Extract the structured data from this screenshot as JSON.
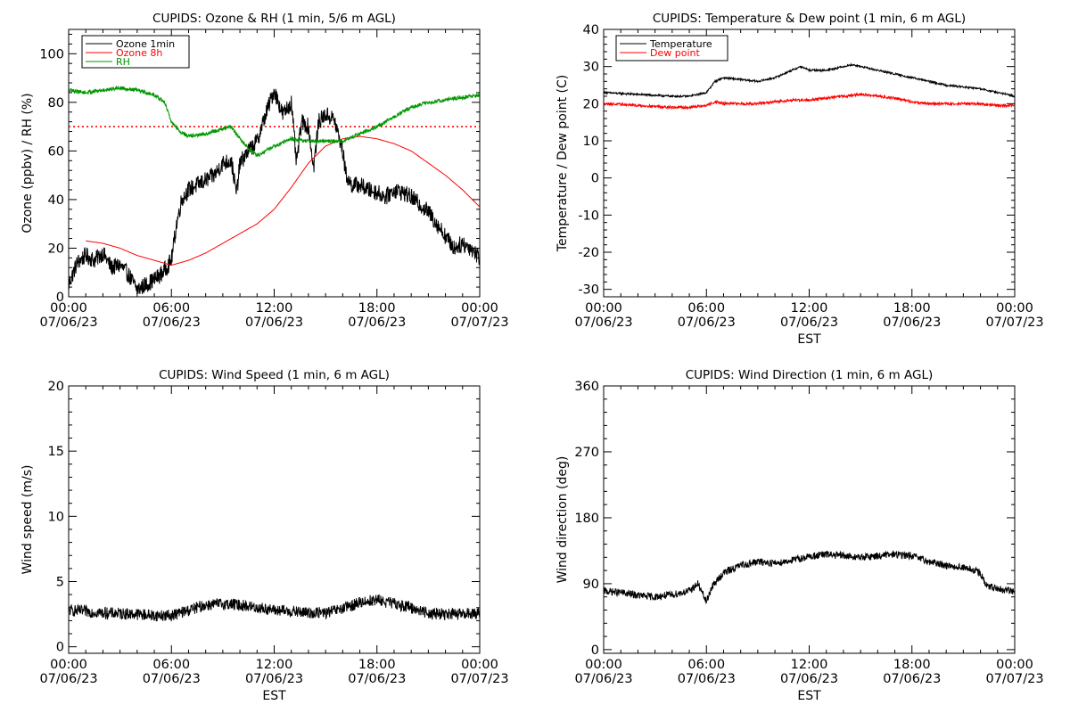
{
  "chart_data": [
    {
      "type": "line",
      "title": "CUPIDS: Ozone & RH (1 min, 5/6 m AGL)",
      "ylabel": "Ozone (ppbv) / RH (%)",
      "xlabel": "",
      "ylim": [
        0,
        110
      ],
      "yticks": [
        "0",
        "20",
        "40",
        "60",
        "80",
        "100"
      ],
      "yticks_values": [
        0,
        20,
        40,
        60,
        80,
        100
      ],
      "xlim": [
        0,
        24
      ],
      "xticks": [
        [
          "00:00",
          "07/06/23"
        ],
        [
          "06:00",
          "07/06/23"
        ],
        [
          "12:00",
          "07/06/23"
        ],
        [
          "18:00",
          "07/06/23"
        ],
        [
          "00:00",
          "07/07/23"
        ]
      ],
      "xticks_values": [
        0,
        6,
        12,
        18,
        24
      ],
      "legend_position": "top-left",
      "reference_line": {
        "y": 70,
        "color": "#ff0000",
        "style": "dotted"
      },
      "series": [
        {
          "name": "Ozone 1min",
          "color": "#000000",
          "noise": 3.5,
          "points": [
            [
              0,
              5
            ],
            [
              0.5,
              14
            ],
            [
              1,
              17
            ],
            [
              1.5,
              15
            ],
            [
              2,
              18
            ],
            [
              2.5,
              12
            ],
            [
              3,
              13
            ],
            [
              3.5,
              9
            ],
            [
              4,
              3
            ],
            [
              4.5,
              5
            ],
            [
              5,
              7
            ],
            [
              5.5,
              10
            ],
            [
              6,
              15
            ],
            [
              6.3,
              30
            ],
            [
              6.6,
              40
            ],
            [
              7,
              44
            ],
            [
              7.5,
              46
            ],
            [
              8,
              48
            ],
            [
              8.5,
              50
            ],
            [
              9,
              55
            ],
            [
              9.5,
              56
            ],
            [
              9.8,
              42
            ],
            [
              10,
              55
            ],
            [
              10.5,
              60
            ],
            [
              11,
              64
            ],
            [
              11.5,
              75
            ],
            [
              12,
              85
            ],
            [
              12.5,
              75
            ],
            [
              13,
              80
            ],
            [
              13.3,
              55
            ],
            [
              13.6,
              72
            ],
            [
              14,
              70
            ],
            [
              14.3,
              53
            ],
            [
              14.6,
              72
            ],
            [
              15,
              75
            ],
            [
              15.5,
              73
            ],
            [
              16,
              60
            ],
            [
              16.2,
              50
            ],
            [
              16.5,
              46
            ],
            [
              17,
              46
            ],
            [
              17.5,
              44
            ],
            [
              18,
              43
            ],
            [
              18.5,
              41
            ],
            [
              19,
              44
            ],
            [
              19.5,
              43
            ],
            [
              20,
              41
            ],
            [
              20.5,
              38
            ],
            [
              21,
              35
            ],
            [
              21.5,
              30
            ],
            [
              22,
              25
            ],
            [
              22.5,
              20
            ],
            [
              23,
              22
            ],
            [
              23.5,
              20
            ],
            [
              24,
              16
            ]
          ]
        },
        {
          "name": "Ozone 8h",
          "color": "#ff0000",
          "noise": 0,
          "points": [
            [
              1,
              23
            ],
            [
              2,
              22
            ],
            [
              3,
              20
            ],
            [
              4,
              17
            ],
            [
              5,
              15
            ],
            [
              6,
              13
            ],
            [
              7,
              15
            ],
            [
              8,
              18
            ],
            [
              9,
              22
            ],
            [
              10,
              26
            ],
            [
              11,
              30
            ],
            [
              12,
              36
            ],
            [
              13,
              45
            ],
            [
              14,
              55
            ],
            [
              15,
              62
            ],
            [
              16,
              65
            ],
            [
              17,
              66
            ],
            [
              18,
              65
            ],
            [
              19,
              63
            ],
            [
              20,
              60
            ],
            [
              21,
              55
            ],
            [
              22,
              50
            ],
            [
              23,
              44
            ],
            [
              24,
              37
            ]
          ]
        },
        {
          "name": "RH",
          "color": "#009600",
          "noise": 0.8,
          "points": [
            [
              0,
              85
            ],
            [
              1,
              84
            ],
            [
              2,
              85
            ],
            [
              3,
              86
            ],
            [
              4,
              85
            ],
            [
              5,
              83
            ],
            [
              5.6,
              80
            ],
            [
              6,
              72
            ],
            [
              6.5,
              68
            ],
            [
              7,
              66
            ],
            [
              8,
              67
            ],
            [
              9,
              69
            ],
            [
              9.5,
              70
            ],
            [
              10,
              65
            ],
            [
              10.5,
              61
            ],
            [
              11,
              58
            ],
            [
              11.5,
              60
            ],
            [
              12,
              62
            ],
            [
              13,
              65
            ],
            [
              14,
              64
            ],
            [
              15,
              64
            ],
            [
              16,
              64
            ],
            [
              17,
              67
            ],
            [
              18,
              70
            ],
            [
              19,
              74
            ],
            [
              20,
              78
            ],
            [
              21,
              80
            ],
            [
              22,
              81
            ],
            [
              23,
              82
            ],
            [
              24,
              83
            ]
          ]
        }
      ]
    },
    {
      "type": "line",
      "title": "CUPIDS: Temperature & Dew point (1 min, 6 m AGL)",
      "ylabel": "Temperature / Dew point (C)",
      "xlabel": "EST",
      "ylim": [
        -32,
        40
      ],
      "yticks": [
        "-30",
        "-20",
        "-10",
        "0",
        "10",
        "20",
        "30",
        "40"
      ],
      "yticks_values": [
        -30,
        -20,
        -10,
        0,
        10,
        20,
        30,
        40
      ],
      "xlim": [
        0,
        24
      ],
      "xticks": [
        [
          "00:00",
          "07/06/23"
        ],
        [
          "06:00",
          "07/06/23"
        ],
        [
          "12:00",
          "07/06/23"
        ],
        [
          "18:00",
          "07/06/23"
        ],
        [
          "00:00",
          "07/07/23"
        ]
      ],
      "xticks_values": [
        0,
        6,
        12,
        18,
        24
      ],
      "legend_position": "top-left",
      "series": [
        {
          "name": "Temperature",
          "color": "#000000",
          "noise": 0.25,
          "points": [
            [
              0,
              23
            ],
            [
              2,
              22.5
            ],
            [
              4,
              22
            ],
            [
              5,
              22
            ],
            [
              6,
              23
            ],
            [
              6.5,
              26
            ],
            [
              7,
              27
            ],
            [
              8,
              26.5
            ],
            [
              9,
              26
            ],
            [
              10,
              27
            ],
            [
              11,
              29
            ],
            [
              11.5,
              30
            ],
            [
              12,
              29
            ],
            [
              13,
              29
            ],
            [
              14,
              30
            ],
            [
              14.5,
              30.5
            ],
            [
              15,
              30
            ],
            [
              16,
              29
            ],
            [
              17,
              28
            ],
            [
              18,
              27
            ],
            [
              19,
              26
            ],
            [
              20,
              25
            ],
            [
              21,
              24.5
            ],
            [
              22,
              24
            ],
            [
              23,
              23
            ],
            [
              24,
              22
            ]
          ]
        },
        {
          "name": "Dew point",
          "color": "#ff0000",
          "noise": 0.35,
          "points": [
            [
              0,
              20
            ],
            [
              1,
              19.8
            ],
            [
              2,
              19.5
            ],
            [
              3,
              19.3
            ],
            [
              4,
              19
            ],
            [
              5,
              19
            ],
            [
              6,
              19.5
            ],
            [
              6.5,
              20.5
            ],
            [
              7,
              20
            ],
            [
              8,
              20
            ],
            [
              9,
              20
            ],
            [
              10,
              20.5
            ],
            [
              11,
              21
            ],
            [
              12,
              21
            ],
            [
              13,
              21.5
            ],
            [
              14,
              22
            ],
            [
              15,
              22.5
            ],
            [
              16,
              22
            ],
            [
              17,
              21.5
            ],
            [
              18,
              20.5
            ],
            [
              19,
              20
            ],
            [
              20,
              20
            ],
            [
              21,
              20
            ],
            [
              22,
              20
            ],
            [
              23,
              19.5
            ],
            [
              24,
              19.5
            ]
          ]
        }
      ]
    },
    {
      "type": "line",
      "title": "CUPIDS: Wind Speed (1 min, 6 m AGL)",
      "ylabel": "Wind speed (m/s)",
      "xlabel": "EST",
      "ylim": [
        -0.5,
        20
      ],
      "yticks": [
        "0",
        "5",
        "10",
        "15",
        "20"
      ],
      "yticks_values": [
        0,
        5,
        10,
        15,
        20
      ],
      "xlim": [
        0,
        24
      ],
      "xticks": [
        [
          "00:00",
          "07/06/23"
        ],
        [
          "06:00",
          "07/06/23"
        ],
        [
          "12:00",
          "07/06/23"
        ],
        [
          "18:00",
          "07/06/23"
        ],
        [
          "00:00",
          "07/07/23"
        ]
      ],
      "xticks_values": [
        0,
        6,
        12,
        18,
        24
      ],
      "series": [
        {
          "name": "",
          "color": "#000000",
          "noise": 0.45,
          "points": [
            [
              0,
              2.8
            ],
            [
              2,
              2.6
            ],
            [
              4,
              2.5
            ],
            [
              5,
              2.4
            ],
            [
              6,
              2.4
            ],
            [
              7,
              2.8
            ],
            [
              8,
              3.2
            ],
            [
              9,
              3.3
            ],
            [
              10,
              3.2
            ],
            [
              11,
              3
            ],
            [
              12,
              2.8
            ],
            [
              13,
              2.7
            ],
            [
              14,
              2.6
            ],
            [
              15,
              2.6
            ],
            [
              16,
              2.9
            ],
            [
              17,
              3.4
            ],
            [
              18,
              3.6
            ],
            [
              19,
              3.3
            ],
            [
              20,
              3
            ],
            [
              21,
              2.6
            ],
            [
              22,
              2.5
            ],
            [
              23,
              2.5
            ],
            [
              24,
              2.6
            ]
          ]
        }
      ]
    },
    {
      "type": "line",
      "title": "CUPIDS: Wind Direction (1 min, 6 m AGL)",
      "ylabel": "Wind direction (deg)",
      "xlabel": "EST",
      "ylim": [
        -5,
        360
      ],
      "yticks": [
        "0",
        "90",
        "180",
        "270",
        "360"
      ],
      "yticks_values": [
        0,
        90,
        180,
        270,
        360
      ],
      "xlim": [
        0,
        24
      ],
      "xticks": [
        [
          "00:00",
          "07/06/23"
        ],
        [
          "06:00",
          "07/06/23"
        ],
        [
          "12:00",
          "07/06/23"
        ],
        [
          "18:00",
          "07/06/23"
        ],
        [
          "00:00",
          "07/07/23"
        ]
      ],
      "xticks_values": [
        0,
        6,
        12,
        18,
        24
      ],
      "series": [
        {
          "name": "",
          "color": "#000000",
          "noise": 5,
          "points": [
            [
              0,
              80
            ],
            [
              1,
              78
            ],
            [
              2,
              74
            ],
            [
              3,
              72
            ],
            [
              4,
              75
            ],
            [
              5,
              80
            ],
            [
              5.5,
              90
            ],
            [
              6,
              65
            ],
            [
              6.3,
              85
            ],
            [
              7,
              105
            ],
            [
              8,
              115
            ],
            [
              9,
              120
            ],
            [
              10,
              118
            ],
            [
              11,
              122
            ],
            [
              12,
              127
            ],
            [
              13,
              130
            ],
            [
              14,
              128
            ],
            [
              15,
              126
            ],
            [
              16,
              128
            ],
            [
              17,
              130
            ],
            [
              18,
              128
            ],
            [
              19,
              120
            ],
            [
              20,
              115
            ],
            [
              21,
              112
            ],
            [
              22,
              105
            ],
            [
              22.3,
              88
            ],
            [
              23,
              82
            ],
            [
              24,
              80
            ]
          ]
        }
      ]
    }
  ]
}
